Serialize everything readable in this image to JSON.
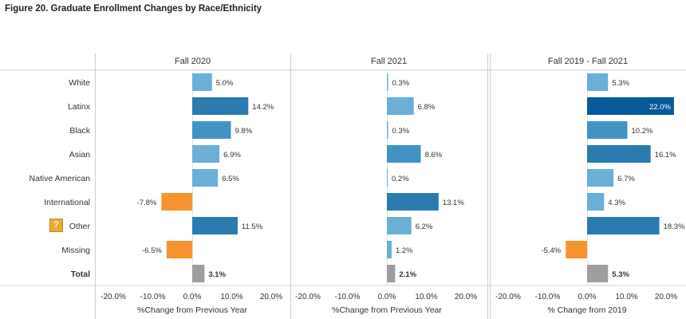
{
  "title": "Figure 20. Graduate Enrollment Changes by Race/Ethnicity",
  "help_icon": {
    "glyph": "?",
    "icon": "question-icon",
    "color": "#f0a830"
  },
  "colors": {
    "light": "#6baed6",
    "medium": "#4292c6",
    "dark": "#2b7bb0",
    "darkest": "#08589a",
    "negative": "#f7942f",
    "total": "#9e9e9e"
  },
  "chart_data": [
    {
      "type": "bar",
      "orientation": "horizontal",
      "panel_title": "Fall 2020",
      "xlabel": "%Change from Previous Year",
      "categories": [
        "White",
        "Latinx",
        "Black",
        "Asian",
        "Native American",
        "International",
        "Other",
        "Missing",
        "Total"
      ],
      "values": [
        5.0,
        14.2,
        9.8,
        6.9,
        6.5,
        -7.8,
        11.5,
        -6.5,
        3.1
      ],
      "labels": [
        "5.0%",
        "14.2%",
        "9.8%",
        "6.9%",
        "6.5%",
        "-7.8%",
        "11.5%",
        "-6.5%",
        "3.1%"
      ],
      "xlim": [
        -25,
        25
      ],
      "xticks": [
        -20,
        -10,
        0,
        10,
        20
      ],
      "xtick_labels": [
        "-20.0%",
        "-10.0%",
        "0.0%",
        "10.0%",
        "20.0%"
      ]
    },
    {
      "type": "bar",
      "orientation": "horizontal",
      "panel_title": "Fall 2021",
      "xlabel": "%Change from Previous Year",
      "categories": [
        "White",
        "Latinx",
        "Black",
        "Asian",
        "Native American",
        "International",
        "Other",
        "Missing",
        "Total"
      ],
      "values": [
        0.3,
        6.8,
        0.3,
        8.6,
        0.2,
        13.1,
        6.2,
        1.2,
        2.1
      ],
      "labels": [
        "0.3%",
        "6.8%",
        "0.3%",
        "8.6%",
        "0.2%",
        "13.1%",
        "6.2%",
        "1.2%",
        "2.1%"
      ],
      "xlim": [
        -25,
        25
      ],
      "xticks": [
        -20,
        -10,
        0,
        10,
        20
      ],
      "xtick_labels": [
        "-20.0%",
        "-10.0%",
        "0.0%",
        "10.0%",
        "20.0%"
      ]
    },
    {
      "type": "bar",
      "orientation": "horizontal",
      "panel_title": "Fall 2019 - Fall 2021",
      "xlabel": "% Change from 2019",
      "categories": [
        "White",
        "Latinx",
        "Black",
        "Asian",
        "Native American",
        "International",
        "Other",
        "Missing",
        "Total"
      ],
      "values": [
        5.3,
        22.0,
        10.2,
        16.1,
        6.7,
        4.3,
        18.3,
        -5.4,
        5.3
      ],
      "labels": [
        "5.3%",
        "22.0%",
        "10.2%",
        "16.1%",
        "6.7%",
        "4.3%",
        "18.3%",
        "-5.4%",
        "5.3%"
      ],
      "xlim": [
        -25,
        25
      ],
      "xticks": [
        -20,
        -10,
        0,
        10,
        20
      ],
      "xtick_labels": [
        "-20.0%",
        "-10.0%",
        "0.0%",
        "10.0%",
        "20.0%"
      ]
    }
  ]
}
